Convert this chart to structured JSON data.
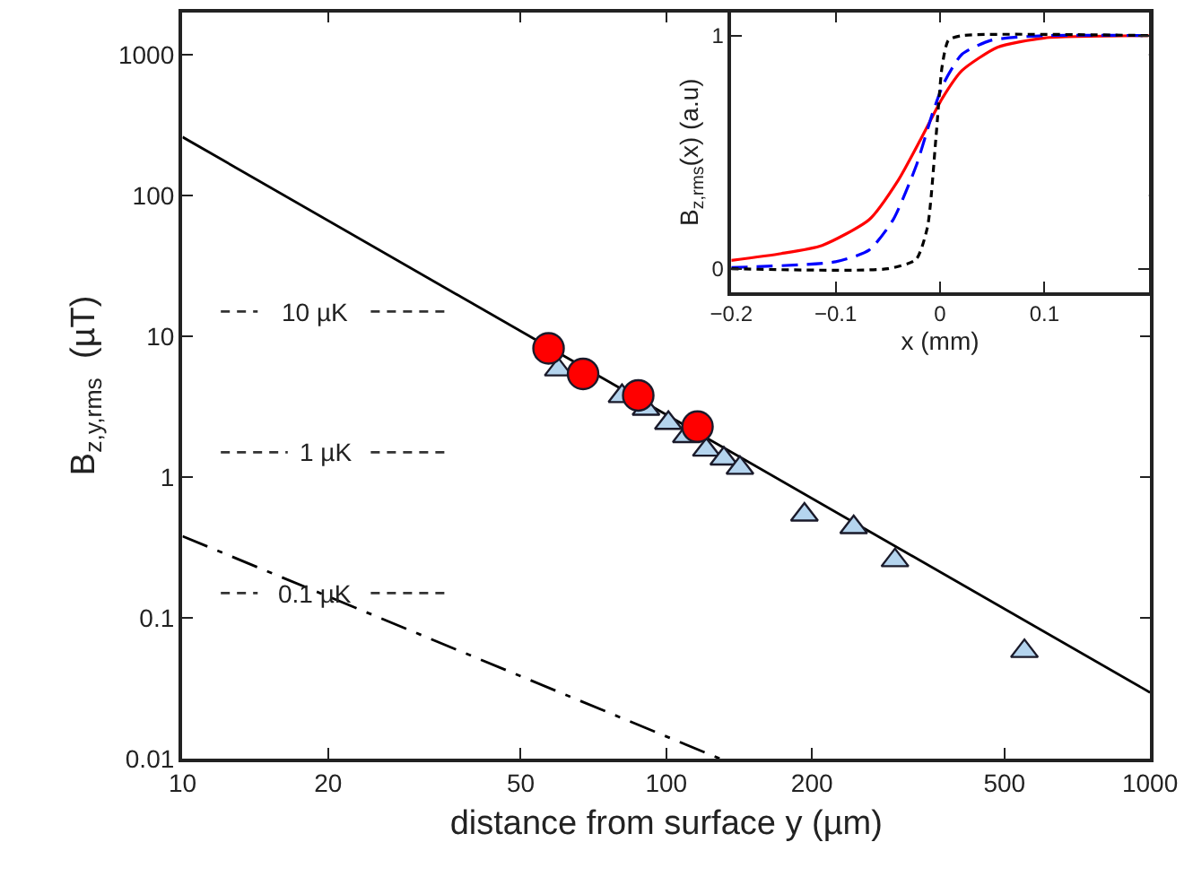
{
  "chart_data": [
    {
      "type": "scatter",
      "xlabel": "distance from surface y (µm)",
      "ylabel": "B$_{z,y,rms}$  (µT)",
      "log": "xy",
      "xlim": [
        10,
        1000
      ],
      "ylim": [
        0.01,
        2000
      ],
      "xticks": [
        10,
        20,
        50,
        100,
        200,
        500,
        1000
      ],
      "yticks": [
        0.01,
        0.1,
        1,
        10,
        100,
        1000
      ],
      "legend": false,
      "series": [
        {
          "type": "line",
          "color": "#000000",
          "line_style": "solid",
          "x": [
            10,
            1000
          ],
          "values": [
            260,
            0.0295
          ]
        },
        {
          "type": "line",
          "color": "#000000",
          "line_style": "dashed",
          "x": [
            10,
            129
          ],
          "values": [
            0.38,
            0.01
          ]
        },
        {
          "type": "line",
          "name": "10 µK",
          "color": "#333333",
          "line_style": "dotted",
          "x": [
            12,
            14.3,
            18.8,
            24.5,
            35
          ],
          "values": [
            15,
            15,
            null,
            15,
            15
          ]
        },
        {
          "type": "line",
          "name": "1 µK",
          "color": "#333333",
          "line_style": "dotted",
          "x": [
            12,
            16.5,
            19.8,
            24.5,
            35
          ],
          "values": [
            1.5,
            1.5,
            null,
            1.5,
            1.5
          ]
        },
        {
          "type": "line",
          "name": "0.1 µK",
          "color": "#333333",
          "line_style": "dotted",
          "x": [
            12,
            14.3,
            18.8,
            24.5,
            35
          ],
          "values": [
            0.15,
            0.15,
            null,
            0.15,
            0.15
          ]
        },
        {
          "type": "scatter",
          "marker": "triangle",
          "color": "#b4d4ee",
          "x": [
            59.8,
            81,
            90.8,
            101,
            110,
            121,
            131.5,
            142,
            193,
            244,
            297,
            550
          ],
          "values": [
            5.8,
            3.75,
            3.05,
            2.42,
            1.95,
            1.56,
            1.35,
            1.16,
            0.54,
            0.44,
            0.256,
            0.058
          ]
        },
        {
          "type": "scatter",
          "marker": "circle",
          "color": "#ff0000",
          "x": [
            57.1,
            67.3,
            87.5,
            116
          ],
          "values": [
            8.2,
            5.4,
            3.8,
            2.28
          ]
        }
      ]
    },
    {
      "type": "line",
      "xlabel": "x (mm)",
      "ylabel": "B$_{z,rms}$(x) (a.u)",
      "xlim": [
        -0.2,
        0.2
      ],
      "ylim": [
        -0.1,
        1.1
      ],
      "xticks": [
        {
          "value": -0.2,
          "label": "−0.2"
        },
        {
          "value": -0.1,
          "label": "−0.1"
        },
        0,
        0.1
      ],
      "yticks": [
        0,
        1
      ],
      "legend": false,
      "series": [
        {
          "color": "#ff0000",
          "line_style": "solid",
          "x": [
            -0.2,
            -0.152,
            -0.113,
            -0.068,
            -0.04,
            -0.018,
            0.002,
            0.021,
            0.055,
            0.1,
            0.2
          ],
          "values": [
            0.036,
            0.065,
            0.1,
            0.21,
            0.38,
            0.56,
            0.73,
            0.85,
            0.95,
            0.99,
            1.0
          ]
        },
        {
          "color": "#0000ff",
          "line_style": "dashed",
          "x": [
            -0.2,
            -0.1,
            -0.068,
            -0.045,
            -0.023,
            -0.007,
            0.004,
            0.021,
            0.049,
            0.1,
            0.2
          ],
          "values": [
            0.005,
            0.03,
            0.08,
            0.21,
            0.44,
            0.67,
            0.8,
            0.92,
            0.98,
            1.0,
            1.0
          ]
        },
        {
          "color": "#000000",
          "line_style": "dotted",
          "x": [
            -0.2,
            -0.05,
            -0.023,
            -0.012,
            -0.004,
            0.002,
            0.008,
            0.021,
            0.2
          ],
          "values": [
            0.0,
            0.0,
            0.04,
            0.18,
            0.56,
            0.87,
            0.98,
            1.0,
            1.0
          ]
        }
      ]
    }
  ]
}
